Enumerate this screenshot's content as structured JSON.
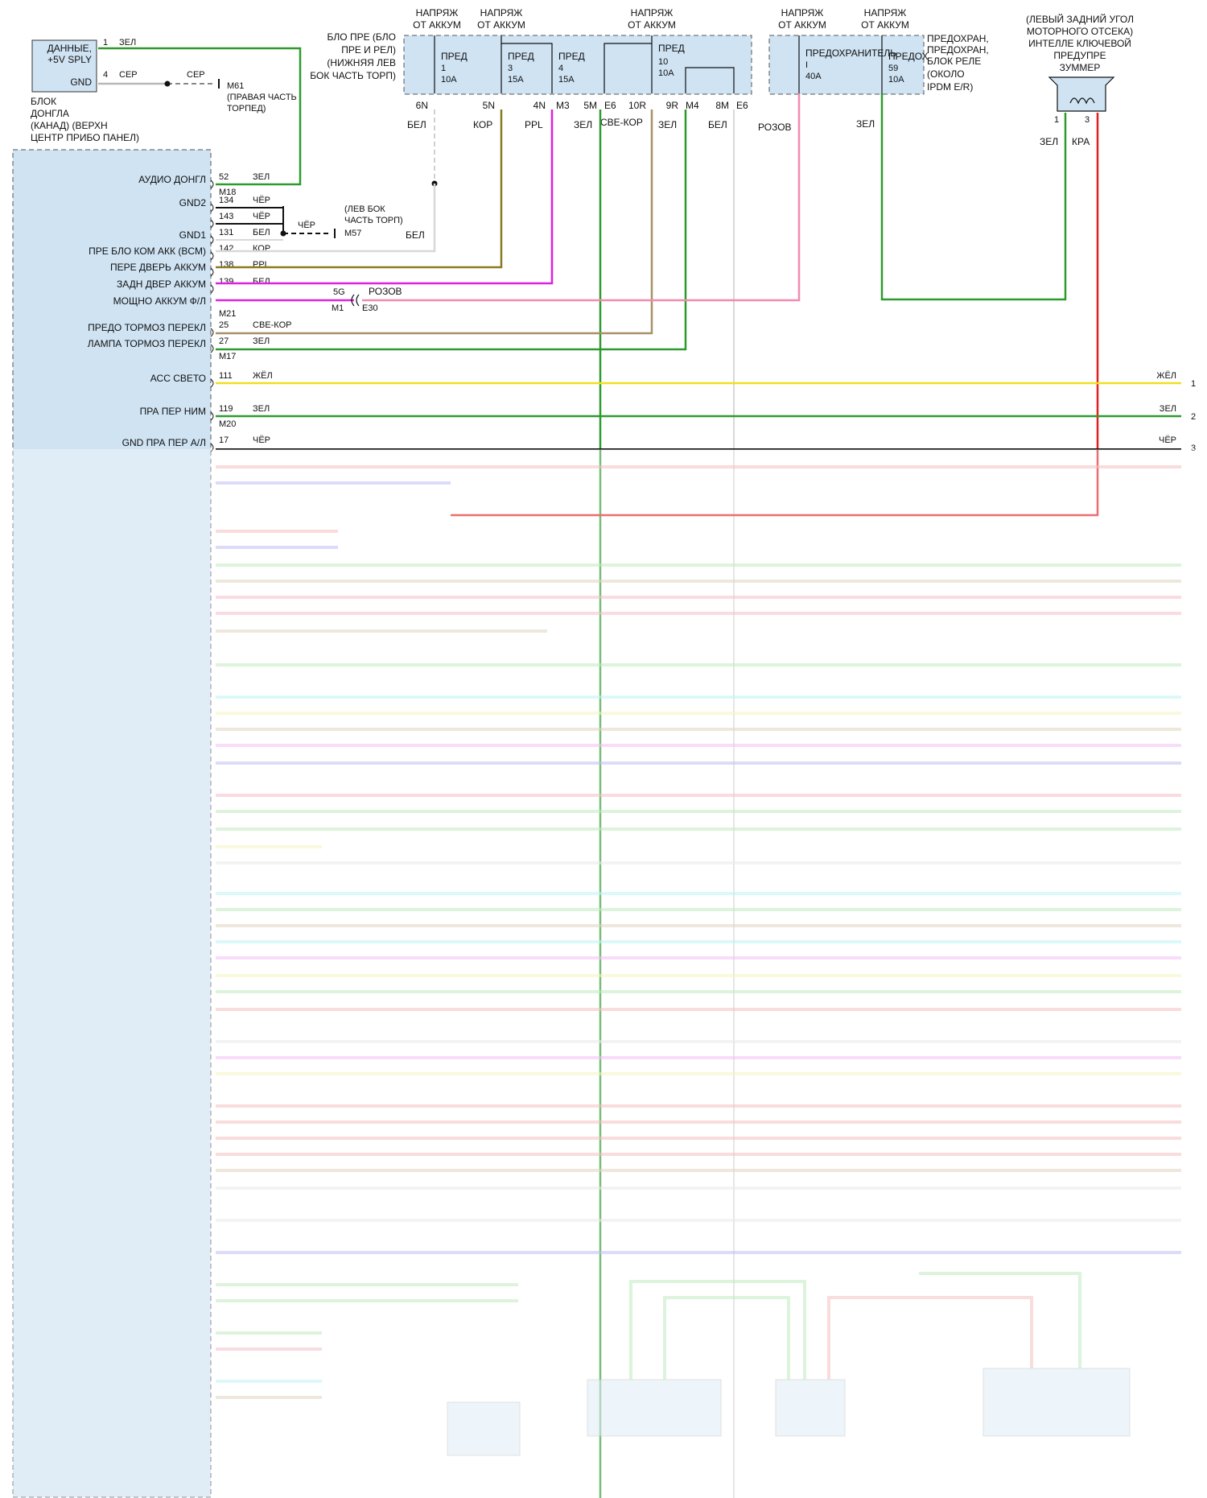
{
  "colors": {
    "module_fill": "#cfe3f3",
    "module_border": "#555555",
    "green": "#2e9a2e",
    "gray": "#b8b8b8",
    "olive": "#8a7a1f",
    "magenta": "#e020e0",
    "pink": "#f08ab0",
    "tan": "#a89068",
    "yellow": "#f0e020",
    "red": "#e02020",
    "black": "#111111",
    "white_wire": "#d8d8d8"
  },
  "dongle": {
    "title_lines": [
      "БЛОК",
      "ДОНГЛА",
      "(КАНАД) (ВЕРХН",
      "ЦЕНТР ПРИБО ПАНЕЛ)"
    ],
    "data_label": "ДАННЫЕ,",
    "sply_label": "+5V SPLY",
    "gnd_label": "GND",
    "pin1": "1",
    "pin1_color": "ЗЕЛ",
    "pin4": "4",
    "pin4_color": "СЕР",
    "ground_color": "СЕР",
    "ground_id": "M61",
    "ground_loc_lines": [
      "(ПРАВАЯ ЧАСТЬ",
      "ТОРПЕД)"
    ]
  },
  "fuse_block": {
    "title_lines": [
      "БЛО ПРЕ (БЛО",
      "ПРЕ И РЕЛ)",
      "(НИЖНЯЯ ЛЕВ",
      "БОК ЧАСТЬ ТОРП)"
    ],
    "supplies": [
      {
        "lines": [
          "НАПРЯЖ",
          "ОТ АККУМ"
        ]
      },
      {
        "lines": [
          "НАПРЯЖ",
          "ОТ АККУМ"
        ]
      },
      {
        "lines": [
          "НАПРЯЖ",
          "ОТ АККУМ"
        ]
      }
    ],
    "fuses": [
      {
        "label": "ПРЕД",
        "num": "1",
        "amp": "10A",
        "pin": "6N",
        "wire": "БЕЛ"
      },
      {
        "label": "ПРЕД",
        "num": "3",
        "amp": "15A",
        "pin": "5N",
        "wire": "КОР"
      },
      {
        "label": "ПРЕД",
        "num": "4",
        "amp": "15A",
        "pin": "4N",
        "wire": "PPL"
      },
      {
        "label": "ПРЕД",
        "num": "10",
        "amp": "10A",
        "pin": "10R",
        "wire": "СВЕ-КОР"
      }
    ],
    "conn_m3": "M3",
    "pin_5m": "5M",
    "conn_e6": "E6",
    "wire_5m": "ЗЕЛ",
    "pin_9r": "9R",
    "conn_m4": "M4",
    "wire_9r": "ЗЕЛ",
    "pin_8m": "8M",
    "conn_e6b": "E6",
    "wire_8m": "БЕЛ"
  },
  "ipdm": {
    "title_lines": [
      "ПРЕДОХРАН,",
      "ПРЕДОХРАН,",
      "БЛОК РЕЛЕ",
      "(ОКОЛО",
      "IPDM E/R)"
    ],
    "supplies": [
      {
        "lines": [
          "НАПРЯЖ",
          "ОТ АККУМ"
        ]
      },
      {
        "lines": [
          "НАПРЯЖ",
          "ОТ АККУМ"
        ]
      }
    ],
    "fuse_a_label": "ПРЕДОХРАНИТЕЛЬ",
    "fuse_a_num": "I",
    "fuse_a_amp": "40A",
    "fuse_a_wire": "РОЗОВ",
    "fuse_b_label": "ПРЕДОХ",
    "fuse_b_num": "59",
    "fuse_b_amp": "10A",
    "fuse_b_wire": "ЗЕЛ"
  },
  "buzzer": {
    "title_lines": [
      "(ЛЕВЫЙ ЗАДНИЙ УГОЛ",
      "МОТОРНОГО ОТСЕКА)",
      "ИНТЕЛЛЕ КЛЮЧЕВОЙ",
      "ПРЕДУПРЕ",
      "ЗУММЕР"
    ],
    "pin1": "1",
    "pin3": "3",
    "wire1": "ЗЕЛ",
    "wire3": "КРА"
  },
  "bcm_rows": [
    {
      "label": "АУДИО ДОНГЛ",
      "pin": "52",
      "wire": "ЗЕЛ",
      "conn": "M18"
    },
    {
      "label": "GND2",
      "pin": "134",
      "wire": "ЧЁР"
    },
    {
      "label": "",
      "pin": "143",
      "wire": "ЧЁР"
    },
    {
      "label": "GND1",
      "pin": "131",
      "wire": "БЕЛ"
    },
    {
      "label": "ПРЕ БЛО КОМ АКК (BCM)",
      "pin": "142",
      "wire": "КОР"
    },
    {
      "label": "ПЕРЕ ДВЕРЬ АККУМ",
      "pin": "138",
      "wire": "PPL"
    },
    {
      "label": "ЗАДН ДВЕР АККУМ",
      "pin": "139",
      "wire": "БЕЛ"
    },
    {
      "label": "МОЩНО АККУМ Ф/Л",
      "pin": "",
      "wire": "",
      "conn": "M21"
    },
    {
      "label": "ПРЕДО ТОРМОЗ ПЕРЕКЛ",
      "pin": "25",
      "wire": "СВЕ-КОР"
    },
    {
      "label": "ЛАМПА ТОРМОЗ ПЕРЕКЛ",
      "pin": "27",
      "wire": "ЗЕЛ",
      "conn": "M17"
    },
    {
      "label": "АСС СВЕТО",
      "pin": "111",
      "wire": "ЖЁЛ",
      "right_wire": "ЖЁЛ",
      "right_pin": "1"
    },
    {
      "label": "ПРА ПЕР НИМ",
      "pin": "119",
      "wire": "ЗЕЛ",
      "conn": "M20",
      "right_wire": "ЗЕЛ",
      "right_pin": "2"
    },
    {
      "label": "GND ПРА ПЕР А/Л",
      "pin": "17",
      "wire": "ЧЁР",
      "right_wire": "ЧЁР",
      "right_pin": "3"
    }
  ],
  "gnd_splice": {
    "wire": "ЧЁР",
    "ground_id": "M57",
    "loc_lines": [
      "(ЛЕВ БОК",
      "ЧАСТЬ ТОРП)"
    ],
    "wire_white": "БЕЛ"
  },
  "inline_conn": {
    "pin_left": "5G",
    "wire_right": "РОЗОВ",
    "conn_left": "M1",
    "conn_right": "E30"
  }
}
